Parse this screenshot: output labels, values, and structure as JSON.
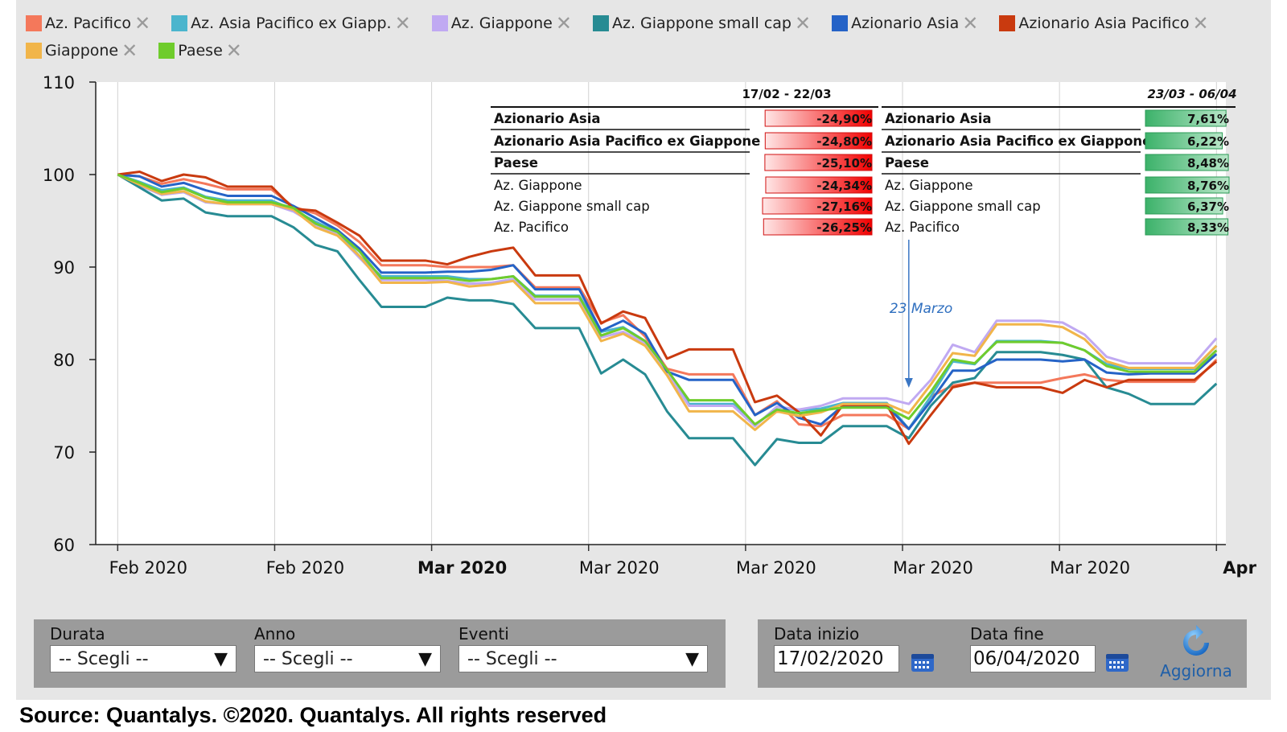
{
  "legend": [
    {
      "name": "Az. Pacifico",
      "color": "#f4785b"
    },
    {
      "name": "Az. Asia Pacifico ex Giapp.",
      "color": "#4bb5cd"
    },
    {
      "name": "Az. Giappone",
      "color": "#c0a9f2"
    },
    {
      "name": "Az. Giappone small cap",
      "color": "#278b93"
    },
    {
      "name": "Azionario Asia",
      "color": "#2563c7"
    },
    {
      "name": "Azionario Asia Pacifico",
      "color": "#c93a0f"
    },
    {
      "name": "Giappone",
      "color": "#f1b54a"
    },
    {
      "name": "Paese",
      "color": "#6fcc2c"
    }
  ],
  "chart_data": {
    "type": "line",
    "x_ticks": [
      "Feb 2020",
      "Feb 2020",
      "Mar 2020",
      "Mar 2020",
      "Mar 2020",
      "Mar 2020",
      "Mar 2020",
      "Apr"
    ],
    "bold_ticks": [
      2,
      7
    ],
    "ylim": [
      60,
      110
    ],
    "y_ticks": [
      60,
      70,
      80,
      90,
      100,
      110
    ],
    "grid": "vertical",
    "x_index_range": [
      -0.7,
      35.3
    ],
    "series": [
      {
        "name": "Az. Pacifico",
        "color": "#f4785b",
        "values": [
          100,
          99.8,
          99,
          99.5,
          99,
          98.4,
          98.4,
          98.4,
          96.5,
          95.8,
          94.5,
          92.7,
          90.2,
          90.2,
          90.2,
          90,
          90,
          90,
          90.2,
          87.8,
          87.8,
          87.8,
          84,
          84.8,
          82.5,
          79,
          78.4,
          78.4,
          78.4,
          74,
          75.5,
          73,
          72.8,
          74,
          74,
          74,
          72.5,
          76,
          77.2,
          77.5,
          77.5,
          77.5,
          77.5,
          78,
          78.4,
          77.8,
          77.6,
          77.6,
          77.6,
          77.6,
          80
        ]
      },
      {
        "name": "Az. Asia Pacifico ex Giapp.",
        "color": "#4bb5cd",
        "values": [
          100,
          99.2,
          98.3,
          98.6,
          97.6,
          97.2,
          97.2,
          97.2,
          96.2,
          94.9,
          93.8,
          91.2,
          89,
          89,
          89,
          89,
          88.7,
          88.7,
          89,
          86.9,
          86.9,
          86.9,
          83,
          83.5,
          82,
          78.8,
          75.2,
          75.2,
          75.2,
          72.8,
          74.9,
          74.5,
          74.7,
          75.3,
          75.3,
          75.3,
          72.5,
          76,
          79.8,
          79.5,
          82,
          82,
          82,
          81.8,
          81,
          79.5,
          79,
          79,
          79,
          79,
          81.5
        ]
      },
      {
        "name": "Az. Giappone",
        "color": "#c0a9f2",
        "values": [
          100,
          98.8,
          97.8,
          98.1,
          97,
          96.8,
          96.8,
          96.8,
          96,
          94.6,
          93.5,
          91,
          88.6,
          88.6,
          88.6,
          88.5,
          88.2,
          88.3,
          88.7,
          86.5,
          86.5,
          86.5,
          82.4,
          83,
          81.8,
          78.6,
          75,
          75,
          75,
          72.8,
          74.9,
          74.6,
          75,
          75.8,
          75.8,
          75.8,
          75.2,
          77.8,
          81.6,
          80.8,
          84.2,
          84.2,
          84.2,
          84,
          82.7,
          80.3,
          79.6,
          79.6,
          79.6,
          79.6,
          82.3
        ]
      },
      {
        "name": "Az. Giappone small cap",
        "color": "#278b93",
        "values": [
          100,
          98.6,
          97.2,
          97.4,
          95.9,
          95.5,
          95.5,
          95.5,
          94.3,
          92.4,
          91.7,
          88.6,
          85.7,
          85.7,
          85.7,
          86.7,
          86.4,
          86.4,
          86,
          83.4,
          83.4,
          83.4,
          78.5,
          80,
          78.4,
          74.4,
          71.5,
          71.5,
          71.5,
          68.6,
          71.4,
          71,
          71,
          72.8,
          72.8,
          72.8,
          71.5,
          75,
          77.5,
          78,
          80.8,
          80.8,
          80.8,
          80.5,
          80,
          77,
          76.3,
          75.2,
          75.2,
          75.2,
          77.4
        ]
      },
      {
        "name": "Azionario Asia",
        "color": "#2563c7",
        "values": [
          100,
          99.8,
          98.7,
          99.1,
          98.3,
          97.7,
          97.7,
          97.7,
          96.6,
          95.3,
          94,
          92,
          89.4,
          89.4,
          89.4,
          89.5,
          89.5,
          89.7,
          90.2,
          87.6,
          87.6,
          87.6,
          83.1,
          84.2,
          82.8,
          78.7,
          77.8,
          77.8,
          77.8,
          74,
          75.3,
          73.7,
          73,
          75,
          75,
          75,
          72.5,
          75.5,
          78.8,
          78.8,
          80,
          80,
          80,
          79.8,
          80,
          78.6,
          78.4,
          78.5,
          78.5,
          78.5,
          80.6
        ]
      },
      {
        "name": "Azionario Asia Pacifico",
        "color": "#c93a0f",
        "values": [
          100,
          100.3,
          99.3,
          100,
          99.7,
          98.7,
          98.7,
          98.7,
          96.3,
          96.1,
          94.8,
          93.4,
          90.7,
          90.7,
          90.7,
          90.3,
          91.1,
          91.7,
          92.1,
          89.1,
          89.1,
          89.1,
          83.9,
          85.2,
          84.5,
          80.1,
          81.1,
          81.1,
          81.1,
          75.4,
          76.1,
          74.3,
          71.8,
          75.1,
          75.1,
          75.1,
          70.9,
          74,
          77,
          77.5,
          77,
          77,
          77,
          76.4,
          77.8,
          77,
          77.8,
          77.8,
          77.8,
          77.8,
          79.8
        ]
      },
      {
        "name": "Giappone",
        "color": "#f1b54a",
        "values": [
          100,
          98.9,
          97.9,
          98.2,
          97.1,
          96.8,
          96.8,
          96.8,
          96.2,
          94.3,
          93.4,
          91.2,
          88.3,
          88.3,
          88.3,
          88.4,
          87.9,
          88.1,
          88.5,
          86.1,
          86.1,
          86.1,
          82,
          82.8,
          81.5,
          78.3,
          74.4,
          74.4,
          74.4,
          72.4,
          74.4,
          73.9,
          74.3,
          75.2,
          75.2,
          75.2,
          74.2,
          77.3,
          80.7,
          80.4,
          83.8,
          83.8,
          83.8,
          83.5,
          82.2,
          79.8,
          79.1,
          79.1,
          79.1,
          79.1,
          81.5
        ]
      },
      {
        "name": "Paese",
        "color": "#6fcc2c",
        "values": [
          100,
          99.1,
          98.1,
          98.5,
          97.5,
          97,
          97,
          97,
          96.4,
          94.7,
          93.8,
          91.7,
          88.8,
          88.8,
          88.8,
          88.8,
          88.5,
          88.7,
          89,
          86.8,
          86.8,
          86.8,
          82.6,
          83.4,
          82,
          78.9,
          75.6,
          75.6,
          75.6,
          73,
          74.6,
          74.2,
          74.5,
          74.8,
          74.8,
          74.8,
          73.6,
          76.5,
          80,
          79.6,
          81.9,
          81.9,
          81.9,
          81.8,
          81,
          79.3,
          78.7,
          78.7,
          78.7,
          78.7,
          81
        ]
      }
    ],
    "annotation": {
      "text": "23 Marzo",
      "x_index": 35
    }
  },
  "tables": [
    {
      "period": "17/02 - 22/03",
      "kind": "negative",
      "rows": [
        {
          "label": "Azionario Asia",
          "value": "-24,90%",
          "bold": true,
          "pct": -24.9
        },
        {
          "label": "Azionario Asia Pacifico ex Giappone",
          "value": "-24,80%",
          "bold": true,
          "pct": -24.8
        },
        {
          "label": "Paese",
          "value": "-25,10%",
          "bold": true,
          "pct": -25.1
        },
        {
          "label": "Az. Giappone",
          "value": "-24,34%",
          "bold": false,
          "pct": -24.34
        },
        {
          "label": "Az. Giappone small cap",
          "value": "-27,16%",
          "bold": false,
          "pct": -27.16
        },
        {
          "label": "Az. Pacifico",
          "value": "-26,25%",
          "bold": false,
          "pct": -26.25
        }
      ]
    },
    {
      "period": "23/03 - 06/04",
      "kind": "positive",
      "rows": [
        {
          "label": "Azionario Asia",
          "value": "7,61%",
          "bold": true,
          "pct": 7.61
        },
        {
          "label": "Azionario Asia Pacifico ex Giappone",
          "value": "6,22%",
          "bold": true,
          "pct": 6.22
        },
        {
          "label": "Paese",
          "value": "8,48%",
          "bold": true,
          "pct": 8.48
        },
        {
          "label": "Az. Giappone",
          "value": "8,76%",
          "bold": false,
          "pct": 8.76
        },
        {
          "label": "Az. Giappone small cap",
          "value": "6,37%",
          "bold": false,
          "pct": 6.37
        },
        {
          "label": "Az. Pacifico",
          "value": "8,33%",
          "bold": false,
          "pct": 8.33
        }
      ]
    }
  ],
  "controls": {
    "durata": {
      "label": "Durata",
      "value": "-- Scegli --"
    },
    "anno": {
      "label": "Anno",
      "value": "-- Scegli --"
    },
    "eventi": {
      "label": "Eventi",
      "value": "-- Scegli --"
    },
    "data_inizio": {
      "label": "Data inizio",
      "value": "17/02/2020"
    },
    "data_fine": {
      "label": "Data fine",
      "value": "06/04/2020"
    },
    "refresh_label": "Aggiorna"
  },
  "source": "Source: Quantalys. ©2020. Quantalys. All rights reserved"
}
